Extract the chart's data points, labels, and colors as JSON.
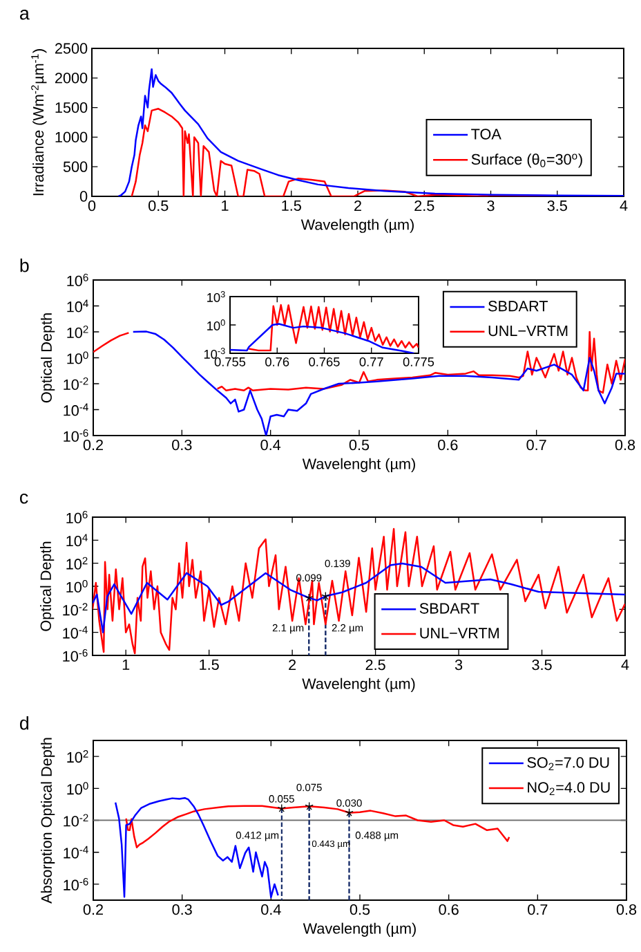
{
  "chart_data": [
    {
      "type": "line",
      "title": "a",
      "xlabel": "Wavelength (µm)",
      "ylabel": "Irradiance (Wm$^{-2}$µm$^{-1}$)",
      "xlim": [
        0,
        4
      ],
      "ylim": [
        0,
        2500
      ],
      "xticks": [
        0,
        0.5,
        1,
        1.5,
        2,
        2.5,
        3,
        3.5,
        4
      ],
      "yticks": [
        0,
        500,
        1000,
        1500,
        2000,
        2500
      ],
      "legend": "right",
      "series": [
        {
          "name": "TOA",
          "color": "#0000ff",
          "x": [
            0.2,
            0.22,
            0.25,
            0.28,
            0.3,
            0.32,
            0.33,
            0.35,
            0.37,
            0.38,
            0.4,
            0.42,
            0.43,
            0.45,
            0.46,
            0.48,
            0.5,
            0.52,
            0.55,
            0.6,
            0.66,
            0.7,
            0.8,
            0.87,
            0.97,
            1.1,
            1.28,
            1.4,
            1.54,
            1.7,
            1.93,
            2.2,
            2.58,
            3.0,
            3.5,
            4.0
          ],
          "values": [
            0,
            20,
            80,
            250,
            500,
            700,
            950,
            1200,
            1350,
            1150,
            1700,
            1500,
            1800,
            2150,
            1850,
            2050,
            1950,
            1900,
            1850,
            1750,
            1565,
            1450,
            1220,
            980,
            750,
            600,
            455,
            360,
            280,
            200,
            140,
            90,
            47,
            25,
            15,
            10
          ]
        },
        {
          "name": "Surface (θ$_{0}$=30$^{o}$)",
          "color": "#ff0000",
          "x": [
            0.3,
            0.33,
            0.36,
            0.38,
            0.4,
            0.42,
            0.45,
            0.5,
            0.55,
            0.6,
            0.65,
            0.68,
            0.69,
            0.7,
            0.72,
            0.73,
            0.76,
            0.77,
            0.8,
            0.82,
            0.84,
            0.88,
            0.92,
            0.94,
            0.97,
            1.0,
            1.05,
            1.1,
            1.14,
            1.17,
            1.22,
            1.26,
            1.3,
            1.44,
            1.48,
            1.55,
            1.65,
            1.75,
            1.8,
            1.97,
            2.05,
            2.2,
            2.35,
            2.45,
            2.6,
            2.9,
            3.0,
            3.5,
            4.0
          ],
          "values": [
            0,
            250,
            700,
            900,
            1200,
            1100,
            1450,
            1480,
            1420,
            1350,
            1250,
            1150,
            0,
            1100,
            900,
            1050,
            0,
            1000,
            900,
            0,
            850,
            750,
            100,
            0,
            600,
            550,
            520,
            0,
            0,
            450,
            430,
            380,
            0,
            0,
            250,
            300,
            280,
            250,
            0,
            0,
            90,
            100,
            80,
            0,
            30,
            0,
            20,
            10,
            5
          ]
        }
      ]
    },
    {
      "type": "line",
      "title": "b",
      "xlabel": "Wavelenght (µm)",
      "ylabel": "Optical Depth",
      "log": true,
      "xlim": [
        0.2,
        0.8
      ],
      "ylim": [
        1e-06,
        1000000.0
      ],
      "xticks": [
        0.2,
        0.3,
        0.4,
        0.5,
        0.6,
        0.7,
        0.8
      ],
      "yticks": [
        {
          "value": 1e-06,
          "label": "10$^{-6}$"
        },
        {
          "value": 0.0001,
          "label": "10$^{-4}$"
        },
        {
          "value": 0.01,
          "label": "10$^{-2}$"
        },
        {
          "value": 1,
          "label": "10$^{0}$"
        },
        {
          "value": 100.0,
          "label": "10$^{2}$"
        },
        {
          "value": 10000.0,
          "label": "10$^{4}$"
        },
        {
          "value": 1000000.0,
          "label": "10$^{6}$"
        }
      ],
      "legend": "top right",
      "series": [
        {
          "name": "SBDART",
          "color": "#0000ff",
          "x": [
            0.245,
            0.26,
            0.27,
            0.28,
            0.29,
            0.3,
            0.31,
            0.32,
            0.33,
            0.34,
            0.35,
            0.355,
            0.36,
            0.364,
            0.37,
            0.377,
            0.385,
            0.39,
            0.395,
            0.4,
            0.407,
            0.415,
            0.42,
            0.43,
            0.44,
            0.4455,
            0.46,
            0.477,
            0.5,
            0.52,
            0.56,
            0.59,
            0.62,
            0.65,
            0.68,
            0.69,
            0.7,
            0.72,
            0.74,
            0.753,
            0.76,
            0.765,
            0.77,
            0.777,
            0.785,
            0.79,
            0.8
          ],
          "values": [
            100,
            105,
            70,
            25,
            6,
            1.2,
            0.25,
            0.05,
            0.012,
            0.003,
            0.0008,
            0.0003,
            0.0006,
            7e-05,
            0.0001,
            0.003,
            0.0001,
            2e-05,
            1e-06,
            3e-05,
            4e-05,
            3e-05,
            0.0001,
            8e-05,
            0.0003,
            0.0016,
            0.004,
            0.01,
            0.012,
            0.015,
            0.025,
            0.04,
            0.04,
            0.03,
            0.02,
            0.15,
            0.1,
            0.3,
            0.05,
            0.003,
            1,
            0.1,
            0.003,
            0.0003,
            0.005,
            0.06,
            0.06
          ]
        },
        {
          "name": "UNL−VRTM",
          "color": "#ff0000",
          "x": [
            0.2,
            0.21,
            0.22,
            0.23,
            0.24,
            0.25,
            0.26,
            0.27,
            0.28,
            0.29,
            0.3,
            0.31,
            0.32,
            0.33,
            0.34,
            0.345,
            0.35,
            0.36,
            0.37,
            0.375,
            0.38,
            0.4,
            0.42,
            0.44,
            0.46,
            0.48,
            0.49,
            0.5,
            0.505,
            0.51,
            0.52,
            0.54,
            0.56,
            0.58,
            0.586,
            0.6,
            0.62,
            0.629,
            0.635,
            0.65,
            0.67,
            0.68,
            0.685,
            0.69,
            0.695,
            0.7,
            0.71,
            0.72,
            0.725,
            0.73,
            0.735,
            0.74,
            0.745,
            0.75,
            0.755,
            0.758,
            0.76,
            0.762,
            0.765,
            0.768,
            0.77,
            0.775,
            0.78,
            0.785,
            0.79,
            0.795,
            0.8
          ],
          "values": [
            2.8,
            8,
            22,
            50,
            85,
            null,
            null,
            null,
            null,
            null,
            null,
            null,
            null,
            null,
            0.004,
            0.006,
            0.003,
            0.004,
            0.003,
            0.005,
            0.003,
            0.004,
            0.0035,
            0.005,
            0.004,
            0.008,
            0.02,
            0.012,
            0.08,
            0.015,
            0.02,
            0.025,
            0.03,
            0.045,
            0.07,
            0.05,
            0.06,
            0.09,
            0.045,
            0.045,
            0.04,
            0.03,
            0.04,
            3,
            0.05,
            1,
            0.03,
            2,
            0.1,
            3,
            0.05,
            1,
            0.03,
            0.005,
            0.003,
            0.003,
            100,
            0.1,
            30,
            0.05,
            0.003,
            0.002,
            0.3,
            0.01,
            0.6,
            0.02,
            0.8
          ]
        }
      ]
    },
    {
      "type": "line",
      "log": true,
      "xlim": [
        0.755,
        0.775
      ],
      "ylim": [
        0.001,
        1000
      ],
      "xticks": [
        0.755,
        0.76,
        0.765,
        0.77,
        0.775
      ],
      "yticks": [
        {
          "value": 0.001,
          "label": "10$^{-3}$"
        },
        {
          "value": 1,
          "label": "10$^{0}$"
        },
        {
          "value": 1000,
          "label": "10$^{3}$"
        }
      ],
      "series": [
        {
          "color": "#ff0000",
          "x": [
            0.757,
            0.758,
            0.7593,
            0.7596,
            0.76,
            0.7604,
            0.7608,
            0.7612,
            0.7616,
            0.762,
            0.7624,
            0.7628,
            0.7632,
            0.7636,
            0.764,
            0.7644,
            0.7648,
            0.7652,
            0.7656,
            0.766,
            0.7664,
            0.7668,
            0.7672,
            0.7676,
            0.768,
            0.7684,
            0.7688,
            0.7692,
            0.7696,
            0.77,
            0.7704,
            0.7708,
            0.7712,
            0.7716,
            0.772,
            0.7724,
            0.7728,
            0.7732,
            0.7736,
            0.774,
            0.7744,
            0.7748,
            0.775
          ],
          "values": [
            0.003,
            0.002,
            0.002,
            100,
            1,
            130,
            1,
            120,
            1,
            0.012,
            1,
            80,
            0.5,
            90,
            0.4,
            80,
            0.3,
            70,
            0.2,
            50,
            0.15,
            30,
            0.1,
            15,
            0.08,
            6,
            0.05,
            2,
            0.03,
            0.5,
            0.02,
            0.1,
            0.008,
            0.05,
            0.006,
            0.03,
            0.005,
            0.02,
            0.004,
            0.015,
            0.004,
            0.01,
            0.004
          ]
        },
        {
          "color": "#0000ff",
          "x": [
            0.755,
            0.7568,
            0.757,
            0.7595,
            0.7602,
            0.7617,
            0.7628,
            0.7647,
            0.7672,
            0.7697,
            0.7712,
            0.7732,
            0.7745
          ],
          "values": [
            0.0023,
            0.002,
            0.0047,
            1,
            1.3,
            0.5,
            0.7,
            0.5,
            0.13,
            0.02,
            0.004,
            0.0018,
            0.001
          ]
        }
      ]
    },
    {
      "type": "line",
      "title": "c",
      "xlabel": "Wavelenght (µm)",
      "ylabel": "Optical Depth",
      "log": true,
      "xlim": [
        0.8,
        4
      ],
      "ylim": [
        1e-06,
        1000000.0
      ],
      "xticks": [
        1,
        1.5,
        2,
        2.5,
        3,
        3.5,
        4
      ],
      "yticks": [
        {
          "value": 1e-06,
          "label": "10$^{-6}$"
        },
        {
          "value": 0.0001,
          "label": "10$^{-4}$"
        },
        {
          "value": 0.01,
          "label": "10$^{-2}$"
        },
        {
          "value": 1,
          "label": "10$^{0}$"
        },
        {
          "value": 100.0,
          "label": "10$^{2}$"
        },
        {
          "value": 10000.0,
          "label": "10$^{4}$"
        },
        {
          "value": 1000000.0,
          "label": "10$^{6}$"
        }
      ],
      "legend": "bottom",
      "series": [
        {
          "name": "SBDART",
          "color": "#0000ff",
          "x": [
            0.8,
            0.826,
            0.863,
            0.888,
            0.93,
            1.033,
            1.127,
            1.25,
            1.365,
            1.49,
            1.573,
            1.614,
            1.84,
            1.988,
            2.05,
            2.1,
            2.15,
            2.2,
            2.3,
            2.444,
            2.59,
            2.66,
            2.776,
            2.92,
            3.19,
            3.315,
            3.48,
            4.0
          ],
          "values": [
            0.034,
            0.19,
            0.0001,
            0.13,
            1.5,
            0.004,
            2,
            0.07,
            14,
            1,
            0.024,
            0.045,
            14,
            0.5,
            0.2,
            0.099,
            0.06,
            0.139,
            0.3,
            2,
            68,
            95,
            48,
            2,
            4,
            1.5,
            0.33,
            0.19
          ]
        },
        {
          "name": "UNL−VRTM",
          "color": "#ff0000",
          "x": [
            0.8,
            0.82,
            0.84,
            0.86,
            0.867,
            0.875,
            0.89,
            0.9,
            0.92,
            0.94,
            0.96,
            0.98,
            1.0,
            1.02,
            1.04,
            1.054,
            1.07,
            1.09,
            1.1,
            1.116,
            1.13,
            1.15,
            1.17,
            1.19,
            1.21,
            1.24,
            1.261,
            1.28,
            1.3,
            1.32,
            1.34,
            1.365,
            1.38,
            1.4,
            1.42,
            1.45,
            1.47,
            1.5,
            1.53,
            1.56,
            1.6,
            1.64,
            1.68,
            1.72,
            1.76,
            1.8,
            1.84,
            1.86,
            1.9,
            1.92,
            1.96,
            2.0,
            2.04,
            2.08,
            2.12,
            2.13,
            2.16,
            2.2,
            2.24,
            2.28,
            2.32,
            2.36,
            2.4,
            2.444,
            2.48,
            2.5,
            2.55,
            2.57,
            2.61,
            2.63,
            2.68,
            2.7,
            2.75,
            2.78,
            2.85,
            2.87,
            2.95,
            2.98,
            3.066,
            3.1,
            3.2,
            3.25,
            3.35,
            3.4,
            3.48,
            3.52,
            3.6,
            3.65,
            3.75,
            3.8,
            3.9,
            3.95,
            4.0
          ],
          "values": [
            0.01,
            2,
            0.001,
            1e-05,
            2e-06,
            130,
            0.01,
            10,
            0.001,
            30,
            0.01,
            5,
            0.0001,
            0.0005,
            1e-05,
            1.5e-06,
            0.1,
            0.001,
            50,
            270,
            0.1,
            20,
            0.01,
            1,
            0.0001,
            1e-05,
            3e-06,
            0.1,
            0.01,
            100,
            0.1,
            6000,
            1,
            200,
            0.1,
            20,
            0.001,
            0.5,
            0.0003,
            0.1,
            0.0005,
            1,
            0.001,
            100,
            0.1,
            2000,
            12000,
            1,
            500,
            0.01,
            50,
            0.001,
            5,
            0.0005,
            3,
            0.0005,
            2,
            0.0005,
            3,
            0.001,
            20,
            0.003,
            300,
            0.006,
            2000,
            0.5,
            20000,
            0.5,
            95000,
            1,
            50000,
            1,
            20000,
            1,
            3000,
            0.5,
            1000,
            0.5,
            760,
            0.5,
            600,
            0.5,
            200,
            0.05,
            10,
            0.012,
            50,
            0.005,
            10,
            0.002,
            5,
            0.001,
            0.03
          ]
        },
        {
          "type": "line",
          "line_style": "dashed",
          "color": "#1a2f6b",
          "x": [
            2.1,
            2.1
          ],
          "values": [
            0.099,
            1e-06
          ]
        },
        {
          "type": "line",
          "line_style": "dashed",
          "color": "#1a2f6b",
          "x": [
            2.2,
            2.2
          ],
          "values": [
            0.139,
            1e-06
          ]
        },
        {
          "type": "scatter",
          "marker": "cross",
          "color": "#000000",
          "x": [
            2.1,
            2.2
          ],
          "values": [
            0.099,
            0.139
          ]
        }
      ],
      "annotations": [
        {
          "text": "0.099",
          "x": 2.1,
          "y": 0.099
        },
        {
          "text": "0.139",
          "x": 2.2,
          "y": 0.139
        },
        {
          "text": "2.1 µm",
          "x": 2.1,
          "y": 0.0002
        },
        {
          "text": "2.2 µm",
          "x": 2.2,
          "y": 0.0002
        }
      ]
    },
    {
      "type": "line",
      "title": "d",
      "xlabel": "Wavelength (µm)",
      "ylabel": "Absorption Optical Depth",
      "log": true,
      "xlim": [
        0.2,
        0.8
      ],
      "ylim": [
        1e-07,
        1000.0
      ],
      "xticks": [
        0.2,
        0.3,
        0.4,
        0.5,
        0.6,
        0.7,
        0.8
      ],
      "yticks": [
        {
          "value": 1e-06,
          "label": "10$^{-6}$"
        },
        {
          "value": 0.0001,
          "label": "10$^{-4}$"
        },
        {
          "value": 0.01,
          "label": "10$^{-2}$"
        },
        {
          "value": 1,
          "label": "10$^{0}$"
        },
        {
          "value": 100.0,
          "label": "10$^{2}$"
        }
      ],
      "legend": "top right",
      "series": [
        {
          "name": "SO$_{2}$=7.0 DU",
          "color": "#0000ff",
          "x": [
            0.225,
            0.229,
            0.232,
            0.235,
            0.237,
            0.241,
            0.247,
            0.254,
            0.264,
            0.274,
            0.282,
            0.289,
            0.297,
            0.303,
            0.307,
            0.313,
            0.318,
            0.324,
            0.332,
            0.34,
            0.346,
            0.351,
            0.356,
            0.36,
            0.365,
            0.371,
            0.375,
            0.38,
            0.383,
            0.387,
            0.39,
            0.393,
            0.396,
            0.4,
            0.404,
            0.408
          ],
          "values": [
            0.13,
            0.013,
            0.0003,
            1.6e-07,
            0.005,
            0.006,
            0.02,
            0.06,
            0.11,
            0.16,
            0.2,
            0.24,
            0.22,
            0.25,
            0.2,
            0.076,
            0.025,
            0.005,
            0.0005,
            6e-05,
            3e-05,
            5e-05,
            2.5e-05,
            0.00025,
            1e-05,
            9e-05,
            0.0002,
            6e-06,
            0.0001,
            1.3e-05,
            3e-06,
            2.5e-05,
            1e-05,
            1.5e-07,
            1e-06,
            2e-07
          ]
        },
        {
          "name": "NO$_{2}$=4.0 DU",
          "color": "#ff0000",
          "x": [
            0.237,
            0.239,
            0.241,
            0.243,
            0.246,
            0.249,
            0.252,
            0.256,
            0.262,
            0.27,
            0.278,
            0.285,
            0.295,
            0.305,
            0.313,
            0.325,
            0.34,
            0.352,
            0.37,
            0.39,
            0.412,
            0.425,
            0.443,
            0.46,
            0.475,
            0.488,
            0.5,
            0.512,
            0.526,
            0.54,
            0.552,
            0.565,
            0.58,
            0.595,
            0.605,
            0.616,
            0.63,
            0.643,
            0.655,
            0.666,
            0.668
          ],
          "values": [
            0.013,
            0.0025,
            0.0024,
            0.012,
            0.001,
            0.0002,
            0.0003,
            0.0004,
            0.0007,
            0.0016,
            0.004,
            0.008,
            0.016,
            0.025,
            0.036,
            0.05,
            0.063,
            0.076,
            0.08,
            0.08,
            0.055,
            0.063,
            0.075,
            0.063,
            0.05,
            0.03,
            0.032,
            0.04,
            0.028,
            0.018,
            0.02,
            0.01,
            0.008,
            0.01,
            0.005,
            0.004,
            0.006,
            0.0024,
            0.003,
            0.0005,
            0.0009
          ]
        },
        {
          "type": "line",
          "line_style": "dashed",
          "color": "#1a2f6b",
          "x": [
            0.412,
            0.412
          ],
          "values": [
            0.055,
            1e-07
          ]
        },
        {
          "type": "line",
          "line_style": "dashed",
          "color": "#1a2f6b",
          "x": [
            0.443,
            0.443
          ],
          "values": [
            0.075,
            1e-07
          ]
        },
        {
          "type": "line",
          "line_style": "dashed",
          "color": "#1a2f6b",
          "x": [
            0.488,
            0.488
          ],
          "values": [
            0.03,
            1e-07
          ]
        },
        {
          "type": "scatter",
          "marker": "cross",
          "color": "#000000",
          "x": [
            0.412,
            0.443,
            0.488
          ],
          "values": [
            0.055,
            0.075,
            0.03
          ]
        }
      ],
      "ref_lines": [
        {
          "axis": "y",
          "value": 0.01,
          "color": "#6d6d6d"
        }
      ],
      "annotations": [
        {
          "text": "0.055",
          "x": 0.412,
          "y": 0.055
        },
        {
          "text": "0.075",
          "x": 0.443,
          "y": 0.075
        },
        {
          "text": "0.030",
          "x": 0.488,
          "y": 0.03
        },
        {
          "text": "0.412 µm",
          "x": 0.412,
          "y": 0.001
        },
        {
          "text": "0.443 µm",
          "x": 0.443,
          "y": 0.0003
        },
        {
          "text": "0.488 µm",
          "x": 0.488,
          "y": 0.001
        }
      ]
    }
  ]
}
